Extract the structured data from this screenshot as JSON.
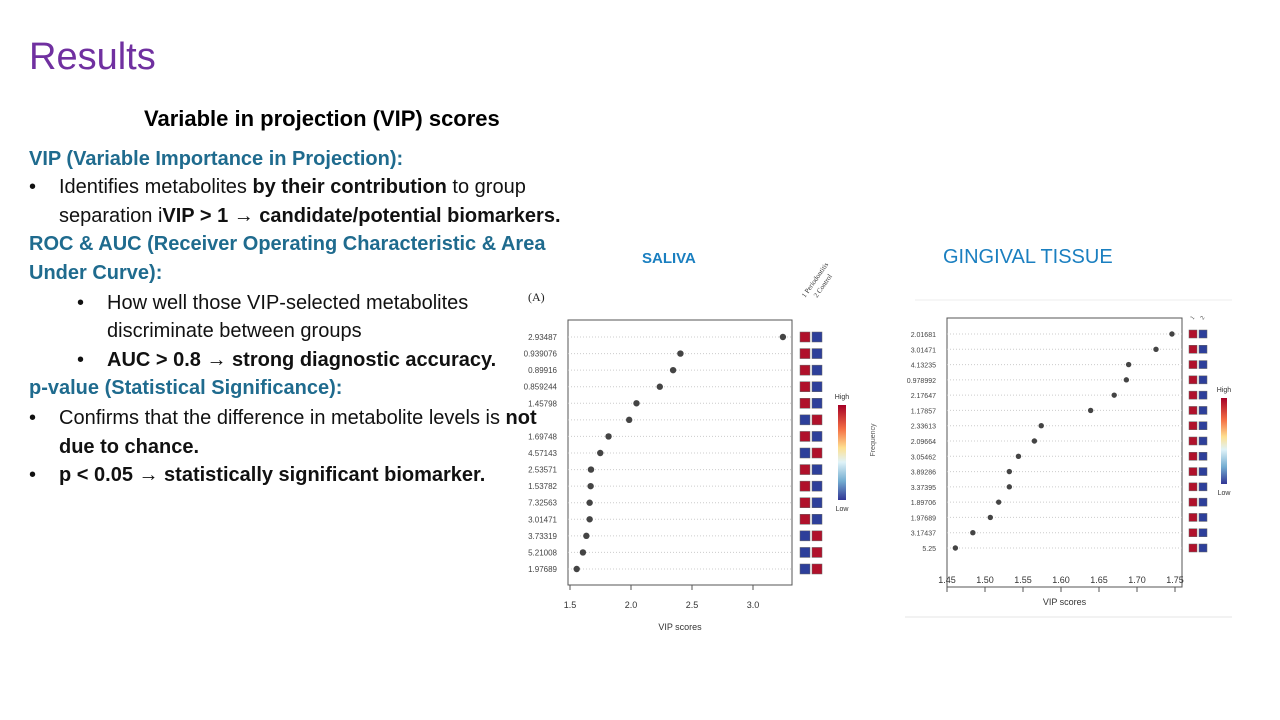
{
  "slide": {
    "title": "Results",
    "subtitle": "Variable in projection (VIP) scores",
    "vip_heading": "VIP (Variable Importance in Projection):",
    "vip_bullet": {
      "a": "Identifies metabolites ",
      "b": "by their contribution",
      "c": " to group",
      "d": "separation i",
      "e": "VIP > 1 → candidate/potential  biomarkers."
    },
    "roc_heading_1": "ROC & AUC (Receiver Operating Characteristic & Area",
    "roc_heading_2": "Under Curve):",
    "roc_bullet_1a": "How well those VIP-selected metabolites",
    "roc_bullet_1b": "discriminate between groups",
    "roc_bullet_2": "AUC > 0.8 → strong diagnostic accuracy.",
    "p_heading": "p-value (Statistical Significance):",
    "p_bullet_1a": "Confirms that the difference in metabolite levels is ",
    "p_bullet_1b": "not",
    "p_bullet_1c": "due to chance.",
    "p_bullet_2": "p < 0.05 → statistically significant biomarker.",
    "bullet": "•"
  },
  "chart_data": [
    {
      "type": "scatter",
      "title": "SALIVA",
      "panel_label": "(A)",
      "xlabel": "VIP scores",
      "xlim": [
        1.5,
        3.1
      ],
      "xticks": [
        "1.5",
        "2.0",
        "2.5",
        "3.0"
      ],
      "group_labels": [
        "1 Periodontitis",
        "2 Control"
      ],
      "legend": {
        "high": "High",
        "low": "Low",
        "title": "Frequency"
      },
      "colors": {
        "high": "#b0112b",
        "low": "#2d3f9a",
        "point": "#444444"
      },
      "categories": [
        "2.93487",
        "0.939076",
        "0.89916",
        "0.859244",
        "1.45798",
        "",
        "1.69748",
        "4.57143",
        "2.53571",
        "1.53782",
        "7.32563",
        "3.01471",
        "3.73319",
        "5.21008",
        "1.97689"
      ],
      "values": [
        3.245,
        2.405,
        2.345,
        2.236,
        2.045,
        1.985,
        1.816,
        1.748,
        1.672,
        1.669,
        1.661,
        1.661,
        1.634,
        1.606,
        1.555
      ],
      "heatmap": [
        [
          "high",
          "low"
        ],
        [
          "high",
          "low"
        ],
        [
          "high",
          "low"
        ],
        [
          "high",
          "low"
        ],
        [
          "high",
          "low"
        ],
        [
          "low",
          "high"
        ],
        [
          "high",
          "low"
        ],
        [
          "low",
          "high"
        ],
        [
          "high",
          "low"
        ],
        [
          "high",
          "low"
        ],
        [
          "high",
          "low"
        ],
        [
          "high",
          "low"
        ],
        [
          "low",
          "high"
        ],
        [
          "low",
          "high"
        ],
        [
          "low",
          "high"
        ]
      ]
    },
    {
      "type": "scatter",
      "title": "GINGIVAL TISSUE",
      "xlabel": "VIP scores",
      "xlim": [
        1.45,
        1.77
      ],
      "xticks": [
        "1.45",
        "1.50",
        "1.55",
        "1.60",
        "1.65",
        "1.70",
        "1.75"
      ],
      "group_labels": [
        "1",
        "2"
      ],
      "legend": {
        "high": "High",
        "low": "Low"
      },
      "colors": {
        "high": "#b0112b",
        "low": "#2d3f9a",
        "point": "#444444"
      },
      "categories": [
        "2.01681",
        "3.01471",
        "4.13235",
        "0.978992",
        "2.17647",
        "1.17857",
        "2.33613",
        "2.09664",
        "3.05462",
        "3.89286",
        "3.37395",
        "1.89706",
        "1.97689",
        "3.17437",
        "5.25"
      ],
      "values": [
        1.746,
        1.725,
        1.689,
        1.686,
        1.67,
        1.639,
        1.574,
        1.565,
        1.544,
        1.532,
        1.532,
        1.518,
        1.507,
        1.484,
        1.461
      ],
      "heatmap": [
        [
          "high",
          "low"
        ],
        [
          "high",
          "low"
        ],
        [
          "high",
          "low"
        ],
        [
          "high",
          "low"
        ],
        [
          "high",
          "low"
        ],
        [
          "high",
          "low"
        ],
        [
          "high",
          "low"
        ],
        [
          "high",
          "low"
        ],
        [
          "high",
          "low"
        ],
        [
          "high",
          "low"
        ],
        [
          "high",
          "low"
        ],
        [
          "high",
          "low"
        ],
        [
          "high",
          "low"
        ],
        [
          "high",
          "low"
        ],
        [
          "high",
          "low"
        ]
      ]
    }
  ]
}
